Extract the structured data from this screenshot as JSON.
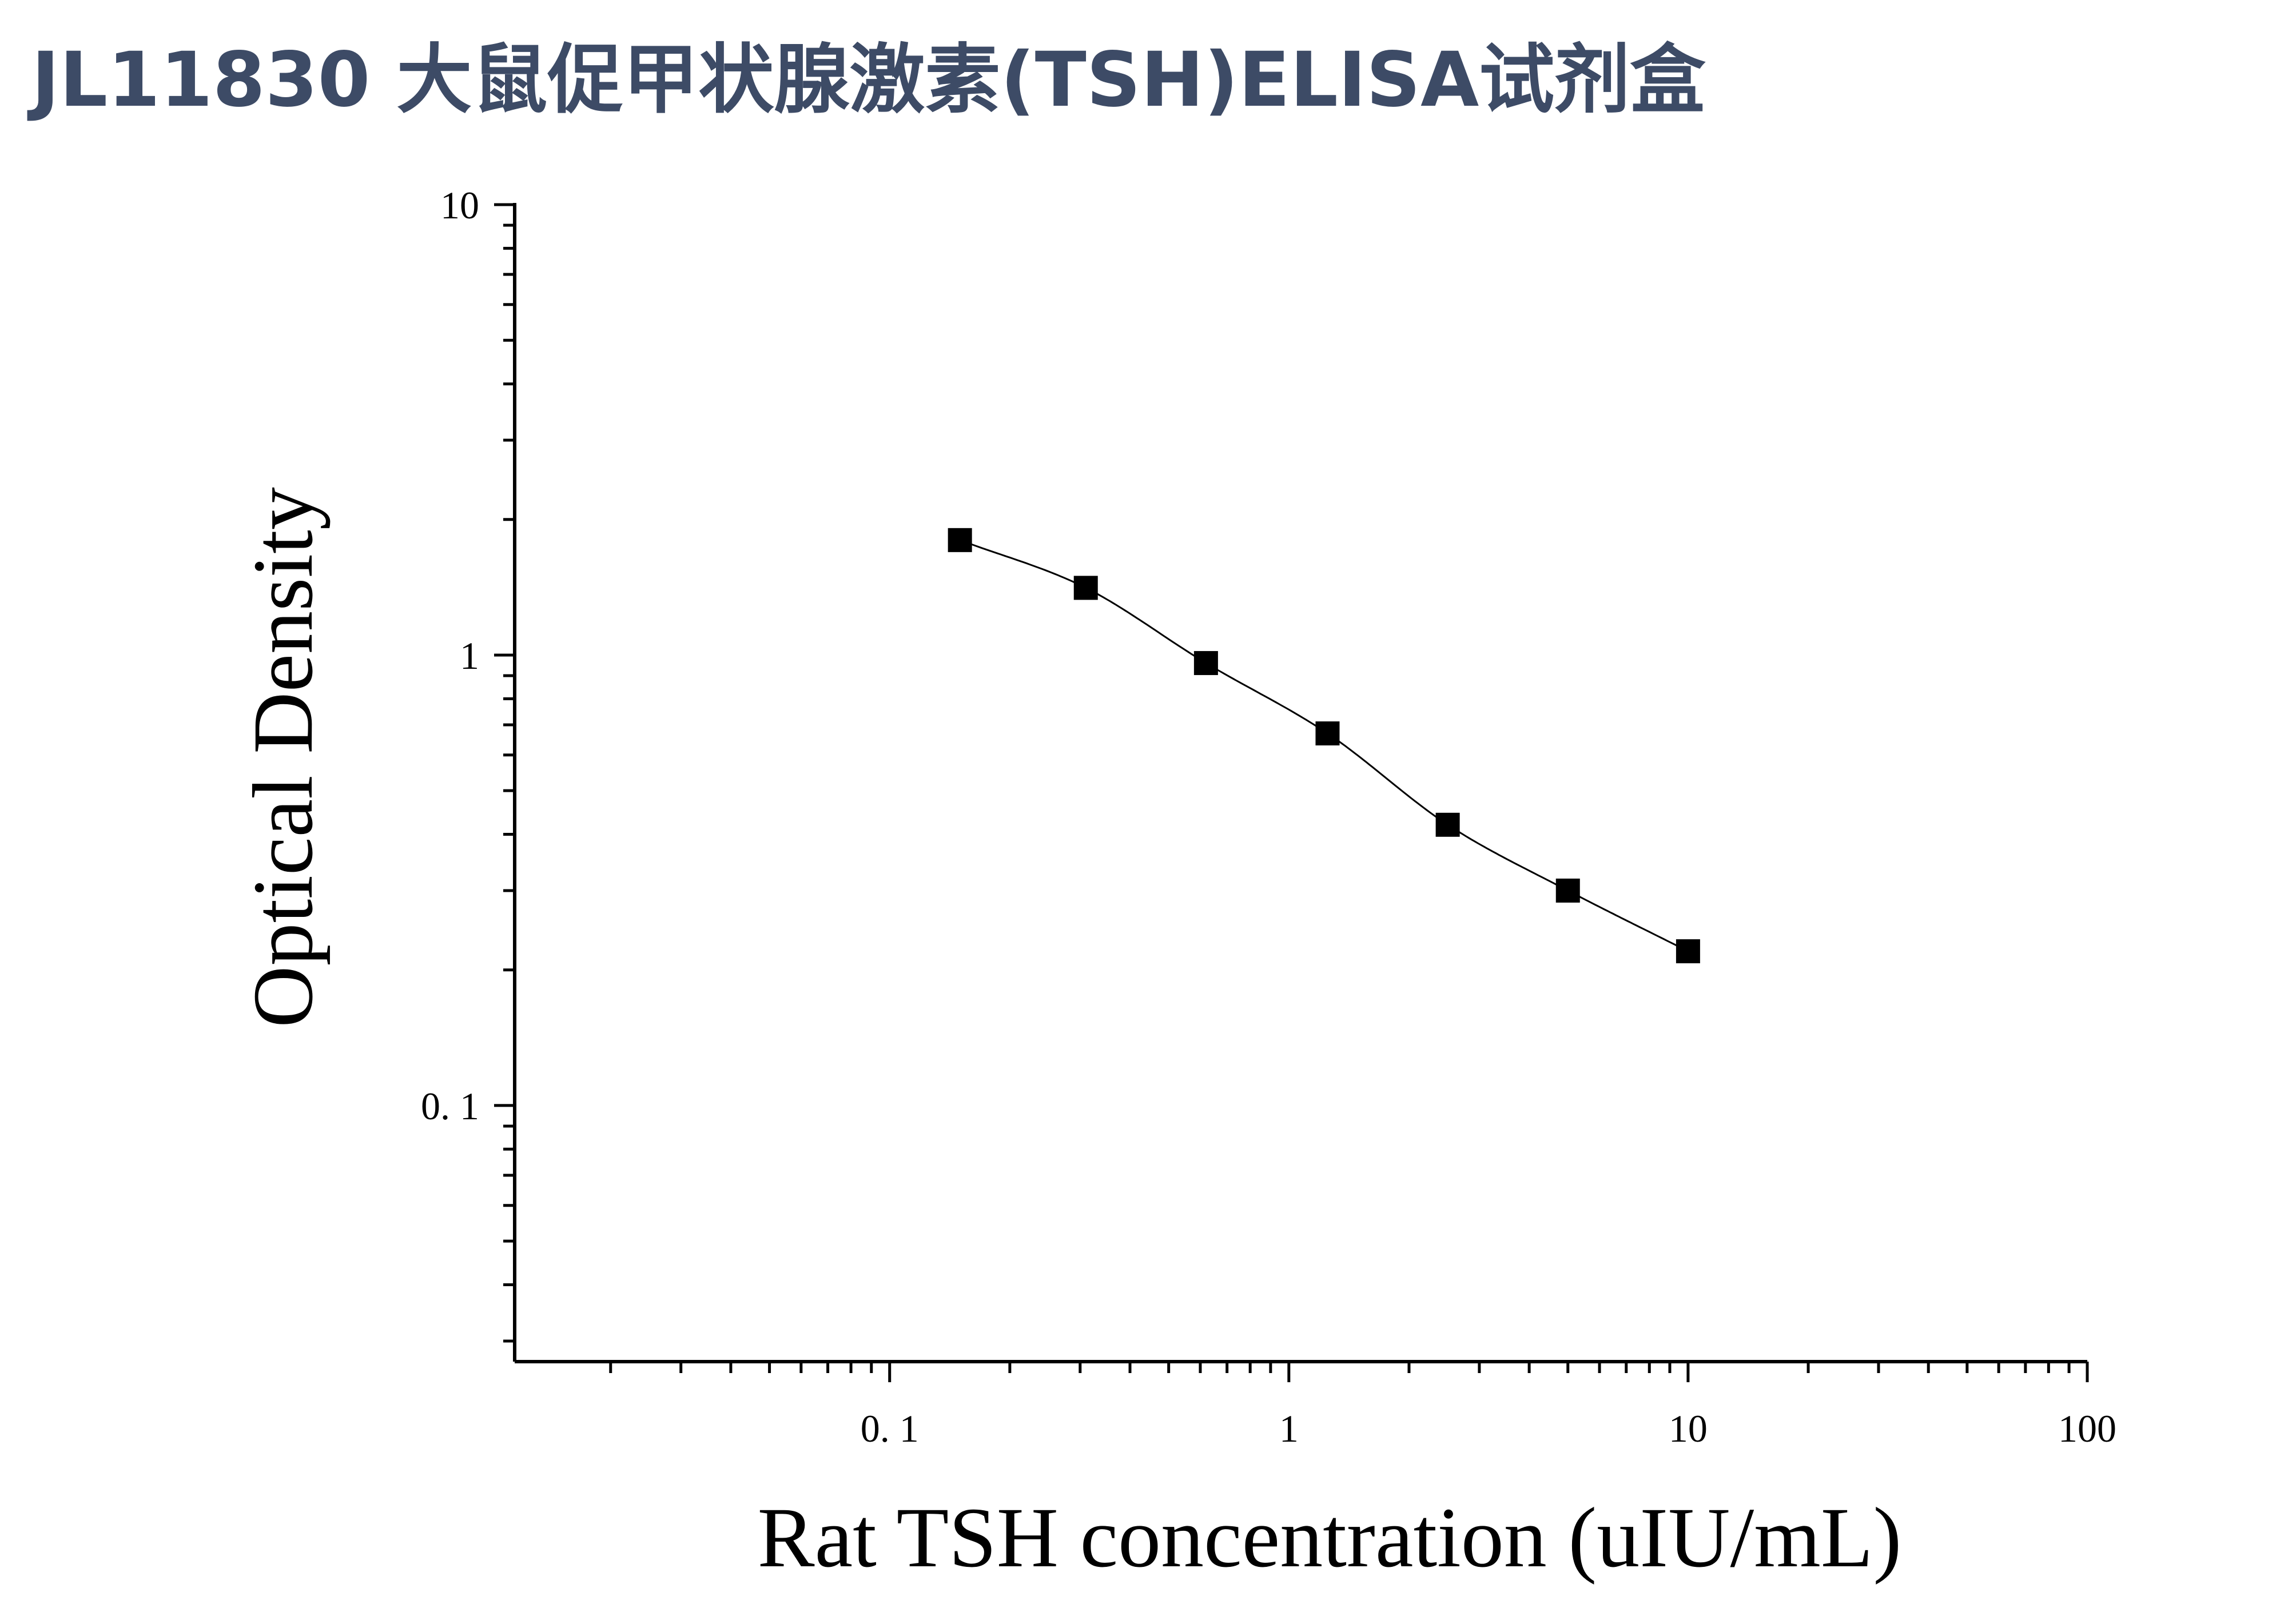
{
  "page": {
    "title": "JL11830 大鼠促甲状腺激素(TSH)ELISA试剂盒"
  },
  "colors": {
    "title": "#3d4b66",
    "axis": "#000000",
    "marker": "#000000",
    "curve": "#000000"
  },
  "chart_data": {
    "type": "scatter",
    "title": "",
    "xlabel": "Rat TSH concentration (uIU/mL)",
    "ylabel": "Optical Density",
    "x_scale": "log",
    "y_scale": "log",
    "xlim": [
      0.0115,
      100
    ],
    "ylim": [
      0.027,
      10
    ],
    "x_tick_labels": [
      "0. 1",
      "1",
      "10",
      "100"
    ],
    "x_tick_values": [
      0.1,
      1,
      10,
      100
    ],
    "y_tick_labels": [
      "10",
      "1",
      "0. 1"
    ],
    "y_tick_values": [
      10,
      1,
      0.1
    ],
    "grid": false,
    "legend": "none",
    "marker": "square",
    "fit_curve": true,
    "series": [
      {
        "x": [
          0.15,
          0.31,
          0.62,
          1.25,
          2.5,
          5,
          10
        ],
        "y": [
          1.8,
          1.41,
          0.96,
          0.67,
          0.42,
          0.3,
          0.22
        ]
      }
    ]
  }
}
